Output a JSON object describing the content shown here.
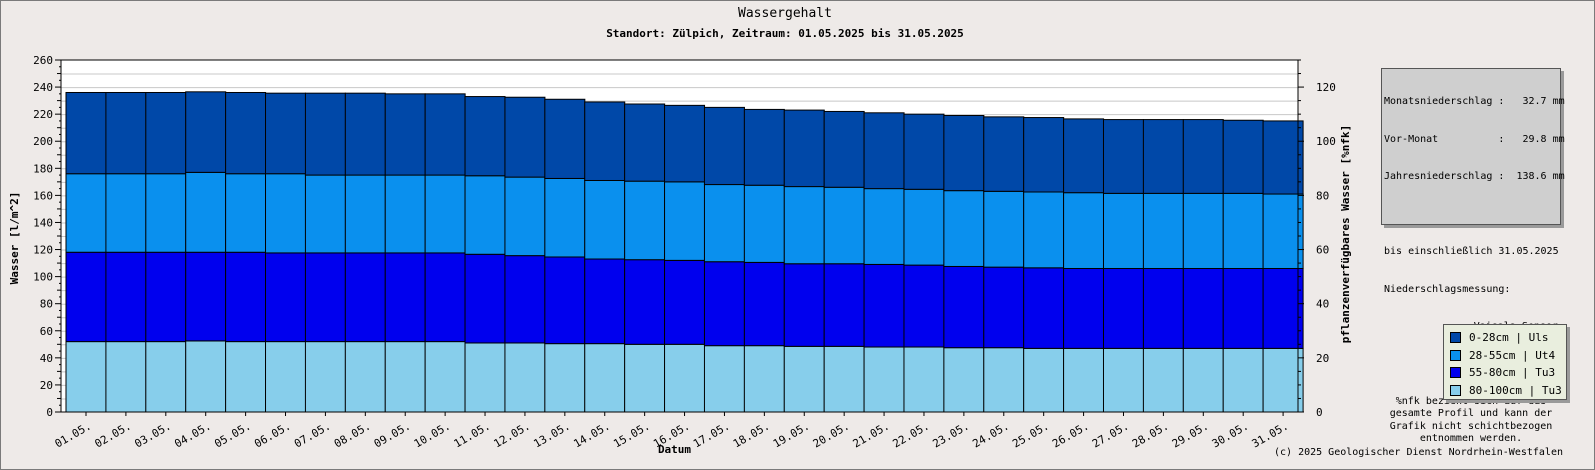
{
  "chart_data": {
    "type": "bar",
    "stacked": true,
    "title": "Wassergehalt",
    "subtitle": "Standort: Zülpich, Zeitraum: 01.05.2025 bis 31.05.2025",
    "xlabel": "Datum",
    "ylabel": "Wasser [l/m^2]",
    "y2label": "pflanzenverfügbares Wasser [%nfk]",
    "ylim": [
      0,
      260
    ],
    "y2lim": [
      0,
      130
    ],
    "yticks": [
      "0",
      "20",
      "40",
      "60",
      "80",
      "100",
      "120",
      "140",
      "160",
      "180",
      "200",
      "220",
      "240",
      "260"
    ],
    "y2ticks": [
      "0",
      "20",
      "40",
      "60",
      "80",
      "100",
      "120"
    ],
    "grid": true,
    "legend_position": "bottom-right",
    "categories": [
      "01.05.",
      "02.05.",
      "03.05.",
      "04.05.",
      "05.05.",
      "06.05.",
      "07.05.",
      "08.05.",
      "09.05.",
      "10.05.",
      "11.05.",
      "12.05.",
      "13.05.",
      "14.05.",
      "15.05.",
      "16.05.",
      "17.05.",
      "18.05.",
      "19.05.",
      "20.05.",
      "21.05.",
      "22.05.",
      "23.05.",
      "24.05.",
      "25.05.",
      "26.05.",
      "27.05.",
      "28.05.",
      "29.05.",
      "30.05.",
      "31.05."
    ],
    "series": [
      {
        "name": "80-100cm | Tu3",
        "color": "#87ceeb",
        "values": [
          52,
          52,
          52,
          52.5,
          52,
          52,
          52,
          52,
          52,
          52,
          51,
          51,
          50.5,
          50.5,
          50,
          50,
          49,
          49,
          48.5,
          48.5,
          48,
          48,
          47.5,
          47.5,
          47,
          47,
          47,
          47,
          47,
          47,
          47
        ]
      },
      {
        "name": "55-80cm | Tu3",
        "color": "#0000ee",
        "values": [
          66,
          66,
          66,
          65.5,
          66,
          65.5,
          65.5,
          65.5,
          65.5,
          65.5,
          65.5,
          64.5,
          64,
          62.5,
          62.5,
          62,
          62,
          61.5,
          61,
          61,
          61,
          60.5,
          60,
          59.5,
          59.5,
          59,
          59,
          59,
          59,
          59,
          59
        ]
      },
      {
        "name": "28-55cm | Ut4",
        "color": "#0a90ee",
        "values": [
          58,
          58,
          58,
          59,
          58,
          58.5,
          57.5,
          57.5,
          57.5,
          57.5,
          58,
          58,
          58,
          58,
          58,
          58,
          57,
          57,
          57,
          56.5,
          56,
          56,
          56,
          56,
          56,
          56,
          55.5,
          55.5,
          55.5,
          55.5,
          55
        ]
      },
      {
        "name": "0-28cm | Uls",
        "color": "#0048a8",
        "values": [
          60,
          60,
          60,
          59.5,
          60,
          59.5,
          60.5,
          60.5,
          60,
          60,
          58.5,
          59,
          58.5,
          58,
          57,
          56.5,
          57,
          56,
          56.5,
          56,
          56,
          55.5,
          55.5,
          55,
          55,
          54.5,
          54.5,
          54.5,
          54.5,
          54,
          54
        ]
      }
    ]
  },
  "info_box": {
    "lines": [
      "Monatsniederschlag :   32.7 mm",
      "Vor-Monat          :   29.8 mm",
      "Jahresniederschlag :  138.6 mm",
      "",
      "bis einschließlich 31.05.2025",
      "Niederschlagsmessung:"
    ],
    "sensor": "Vaisala-Sensor",
    "note": "%nfk bezieht sich auf das gesamte Profil und kann der Grafik nicht schichtbezogen entnommen werden."
  },
  "credit": "(c) 2025 Geologischer Dienst Nordrhein-Westfalen"
}
